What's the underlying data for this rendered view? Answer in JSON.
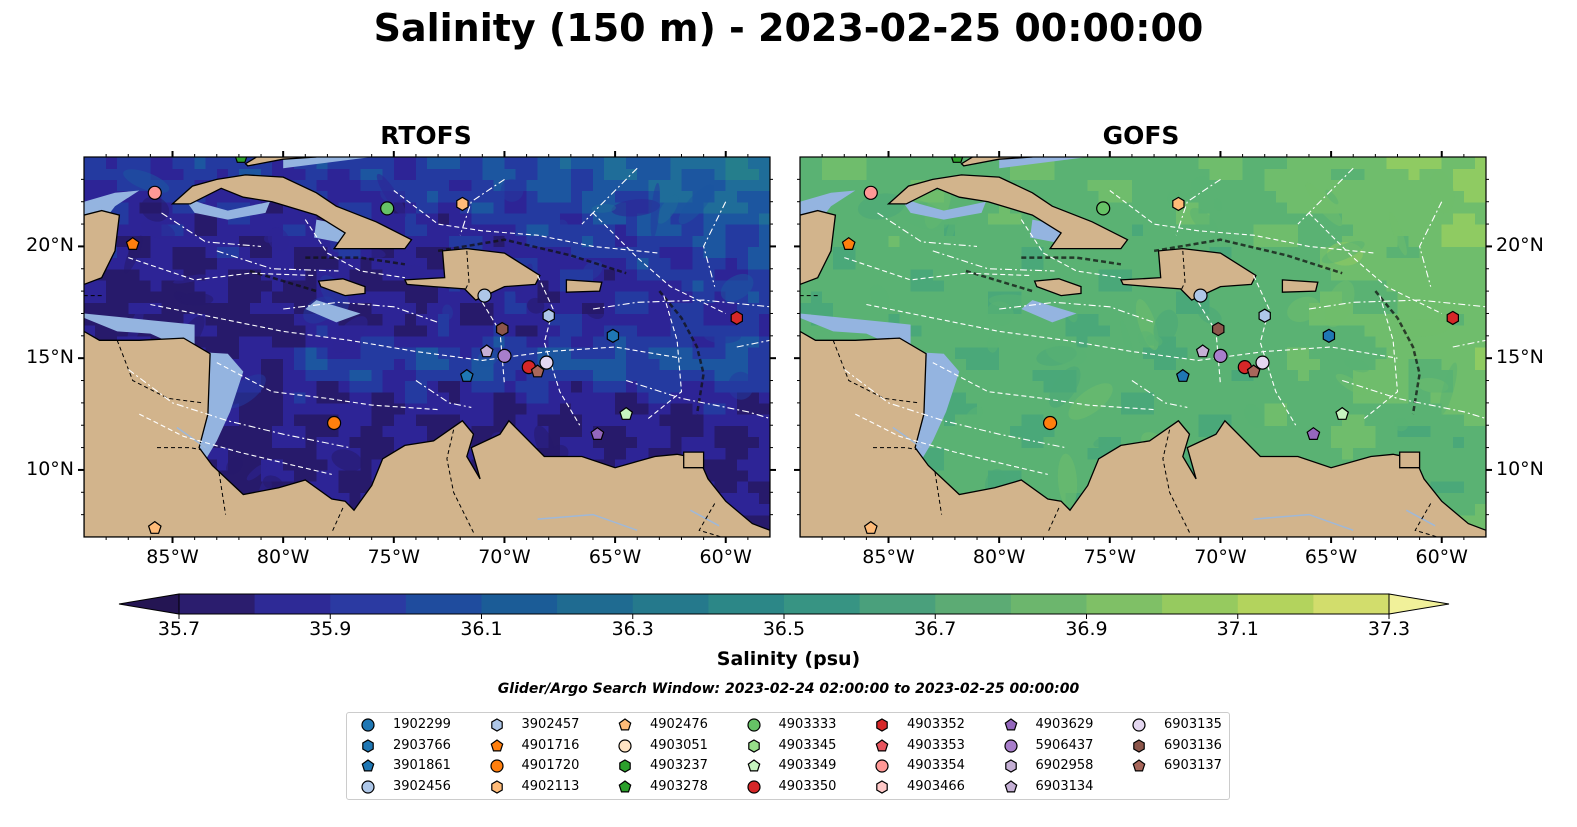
{
  "title": "Salinity (150 m) - 2023-02-25 00:00:00",
  "panels": [
    {
      "title": "RTOFS",
      "palette": "rtofs"
    },
    {
      "title": "GOFS",
      "palette": "gofs"
    }
  ],
  "map_extent": {
    "lon": [
      -89,
      -58
    ],
    "lat": [
      7,
      24
    ]
  },
  "lon_ticks": [
    {
      "value": -85,
      "label": "85°W"
    },
    {
      "value": -80,
      "label": "80°W"
    },
    {
      "value": -75,
      "label": "75°W"
    },
    {
      "value": -70,
      "label": "70°W"
    },
    {
      "value": -65,
      "label": "65°W"
    },
    {
      "value": -60,
      "label": "60°W"
    }
  ],
  "lat_ticks": [
    {
      "value": 20,
      "label": "20°N"
    },
    {
      "value": 15,
      "label": "15°N"
    },
    {
      "value": 10,
      "label": "10°N"
    }
  ],
  "colorbar": {
    "title": "Salinity (psu)",
    "min": 35.6,
    "max": 37.4,
    "ticks": [
      "35.7",
      "35.9",
      "36.1",
      "36.3",
      "36.5",
      "36.7",
      "36.9",
      "37.1",
      "37.3"
    ],
    "extend": "both"
  },
  "search_window": "Glider/Argo Search Window: 2023-02-24 02:00:00 to 2023-02-25 00:00:00",
  "colors": {
    "land": "#d2b48c",
    "shelf": "#94b4e0",
    "coast": "#000000"
  },
  "legend": [
    {
      "id": "1902299",
      "marker": "circle",
      "color": "#1f77b4"
    },
    {
      "id": "2903766",
      "marker": "hexagon",
      "color": "#1f77b4"
    },
    {
      "id": "3901861",
      "marker": "pentagon",
      "color": "#1f77b4"
    },
    {
      "id": "3902456",
      "marker": "circle",
      "color": "#aec7e8"
    },
    {
      "id": "3902457",
      "marker": "hexagon",
      "color": "#aec7e8"
    },
    {
      "id": "4901716",
      "marker": "pentagon",
      "color": "#ff7f0e"
    },
    {
      "id": "4901720",
      "marker": "circle",
      "color": "#ff7f0e"
    },
    {
      "id": "4902113",
      "marker": "hexagon",
      "color": "#ffbb78"
    },
    {
      "id": "4902476",
      "marker": "pentagon",
      "color": "#ffbb78"
    },
    {
      "id": "4903051",
      "marker": "circle",
      "color": "#ffe4c4"
    },
    {
      "id": "4903237",
      "marker": "hexagon",
      "color": "#2ca02c"
    },
    {
      "id": "4903278",
      "marker": "pentagon",
      "color": "#2ca02c"
    },
    {
      "id": "4903333",
      "marker": "circle",
      "color": "#66c266"
    },
    {
      "id": "4903345",
      "marker": "hexagon",
      "color": "#98df8a"
    },
    {
      "id": "4903349",
      "marker": "pentagon",
      "color": "#c7f5c0"
    },
    {
      "id": "4903350",
      "marker": "circle",
      "color": "#d62728"
    },
    {
      "id": "4903352",
      "marker": "hexagon",
      "color": "#d62728"
    },
    {
      "id": "4903353",
      "marker": "pentagon",
      "color": "#e8555f"
    },
    {
      "id": "4903354",
      "marker": "circle",
      "color": "#ff9896"
    },
    {
      "id": "4903466",
      "marker": "hexagon",
      "color": "#ffc9c8"
    },
    {
      "id": "4903629",
      "marker": "pentagon",
      "color": "#9467bd"
    },
    {
      "id": "5906437",
      "marker": "circle",
      "color": "#a87ecb"
    },
    {
      "id": "6902958",
      "marker": "hexagon",
      "color": "#c5b0d5"
    },
    {
      "id": "6903134",
      "marker": "pentagon",
      "color": "#c5b0d5"
    },
    {
      "id": "6903135",
      "marker": "circle",
      "color": "#e4d7f0"
    },
    {
      "id": "6903136",
      "marker": "hexagon",
      "color": "#8c564b"
    },
    {
      "id": "6903137",
      "marker": "pentagon",
      "color": "#a8675b"
    }
  ],
  "floats": [
    {
      "id": "4903354",
      "lon": -85.8,
      "lat": 22.4
    },
    {
      "id": "4901716",
      "lon": -86.8,
      "lat": 20.1
    },
    {
      "id": "4903278",
      "lon": -81.9,
      "lat": 24.0
    },
    {
      "id": "4903333",
      "lon": -75.3,
      "lat": 21.7
    },
    {
      "id": "4902113",
      "lon": -71.9,
      "lat": 21.9
    },
    {
      "id": "3902456",
      "lon": -70.9,
      "lat": 17.8
    },
    {
      "id": "3902457",
      "lon": -68.0,
      "lat": 16.9
    },
    {
      "id": "6903136",
      "lon": -70.1,
      "lat": 16.3
    },
    {
      "id": "2903766",
      "lon": -65.1,
      "lat": 16.0
    },
    {
      "id": "4903352",
      "lon": -59.5,
      "lat": 16.8
    },
    {
      "id": "6903134",
      "lon": -70.8,
      "lat": 15.3
    },
    {
      "id": "5906437",
      "lon": -70.0,
      "lat": 15.1
    },
    {
      "id": "6903135",
      "lon": -68.1,
      "lat": 14.8
    },
    {
      "id": "4903350",
      "lon": -68.9,
      "lat": 14.6
    },
    {
      "id": "6903137",
      "lon": -68.5,
      "lat": 14.4
    },
    {
      "id": "3901861",
      "lon": -71.7,
      "lat": 14.2
    },
    {
      "id": "4901720",
      "lon": -77.7,
      "lat": 12.1
    },
    {
      "id": "4903349",
      "lon": -64.5,
      "lat": 12.5
    },
    {
      "id": "4903629",
      "lon": -65.8,
      "lat": 11.6
    },
    {
      "id": "4902476",
      "lon": -85.8,
      "lat": 7.4
    }
  ]
}
